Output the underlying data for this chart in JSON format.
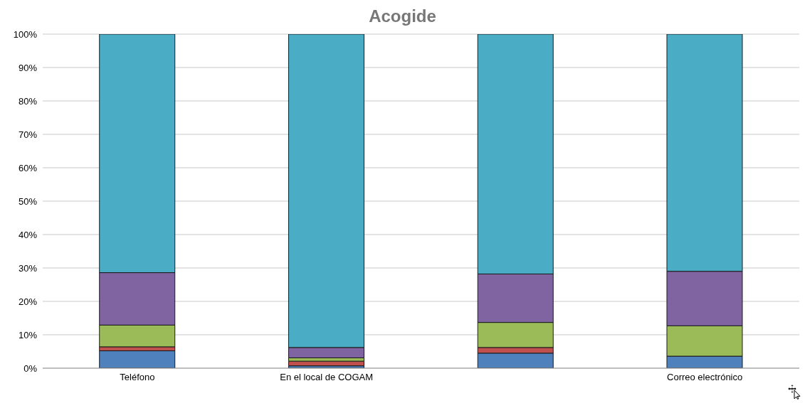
{
  "chart_data": {
    "type": "bar",
    "subtitle": "Acogide",
    "stacked": true,
    "categories": [
      "Teléfono",
      "En el local de COGAM",
      null,
      "Correo electrónico"
    ],
    "series": [
      {
        "color": "#4f81bd",
        "values": [
          5.2,
          0.7,
          4.5,
          3.6
        ]
      },
      {
        "color": "#c0504d",
        "values": [
          1.2,
          1.4,
          1.7,
          0
        ]
      },
      {
        "color": "#9bbb59",
        "values": [
          6.5,
          1.0,
          7.5,
          9.1
        ]
      },
      {
        "color": "#8064a2",
        "values": [
          15.7,
          3.1,
          14.5,
          16.3
        ]
      },
      {
        "color": "#4bacc6",
        "values": [
          71.4,
          93.8,
          71.8,
          71.0
        ]
      }
    ],
    "ylim": [
      0,
      100
    ],
    "yticks": [
      {
        "value": 0,
        "label": "0%"
      },
      {
        "value": 10,
        "label": "10%"
      },
      {
        "value": 20,
        "label": "20%"
      },
      {
        "value": 30,
        "label": "30%"
      },
      {
        "value": 40,
        "label": "40%"
      },
      {
        "value": 50,
        "label": "50%"
      },
      {
        "value": 60,
        "label": "60%"
      },
      {
        "value": 70,
        "label": "70%"
      },
      {
        "value": 80,
        "label": "80%"
      },
      {
        "value": 90,
        "label": "90%"
      },
      {
        "value": 100,
        "label": "100%"
      }
    ],
    "grid": "y"
  }
}
